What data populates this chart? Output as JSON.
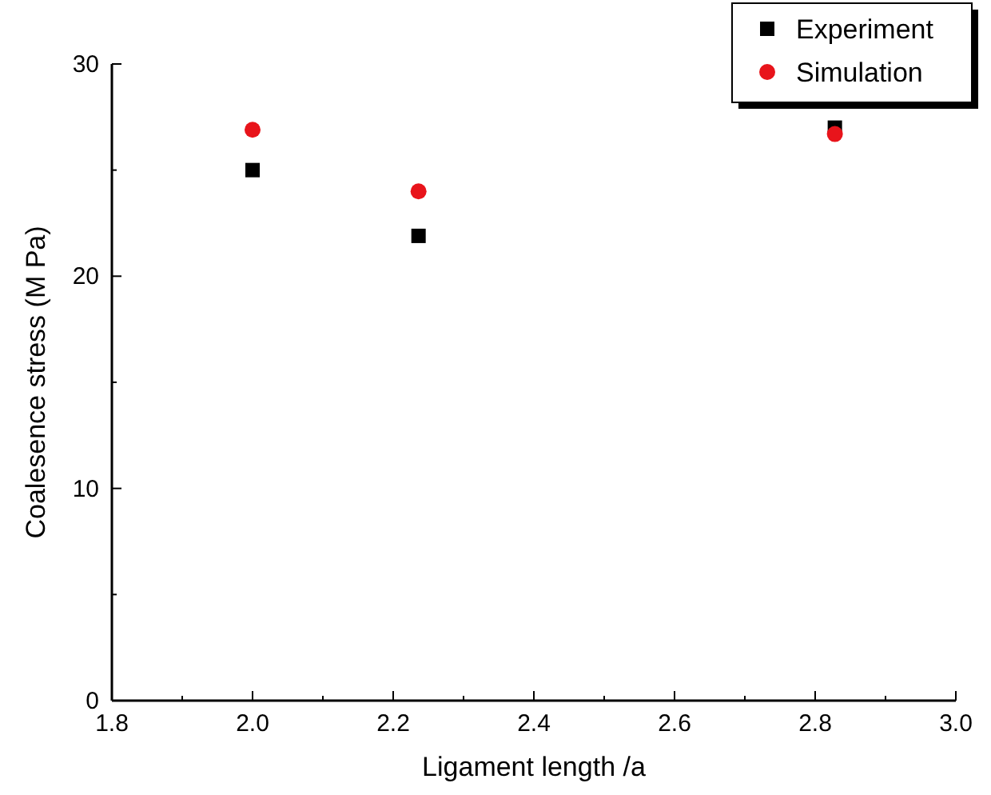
{
  "chart_data": {
    "type": "scatter",
    "xlabel": "Ligament length /a",
    "ylabel": "Coalesence stress (M Pa)",
    "xlim": [
      1.8,
      3.0
    ],
    "xticks": [
      {
        "value": 1.8,
        "label": "1.8"
      },
      {
        "value": 2.0,
        "label": "2.0"
      },
      {
        "value": 2.2,
        "label": "2.2"
      },
      {
        "value": 2.4,
        "label": "2.4"
      },
      {
        "value": 2.6,
        "label": "2.6"
      },
      {
        "value": 2.8,
        "label": "2.8"
      },
      {
        "value": 3.0,
        "label": "3.0"
      }
    ],
    "ylim": [
      0,
      30
    ],
    "yticks": [
      0,
      10,
      20,
      30
    ],
    "grid": false,
    "legend": "top right",
    "series": [
      {
        "name": "Experiment",
        "color": "#000000",
        "marker": "square",
        "x": [
          2.0,
          2.236,
          2.828
        ],
        "values": [
          25.0,
          21.9,
          27.0
        ]
      },
      {
        "name": "Simulation",
        "color": "#e8141b",
        "marker": "circle",
        "x": [
          2.0,
          2.236,
          2.828
        ],
        "values": [
          26.9,
          24.0,
          26.7
        ]
      }
    ]
  }
}
